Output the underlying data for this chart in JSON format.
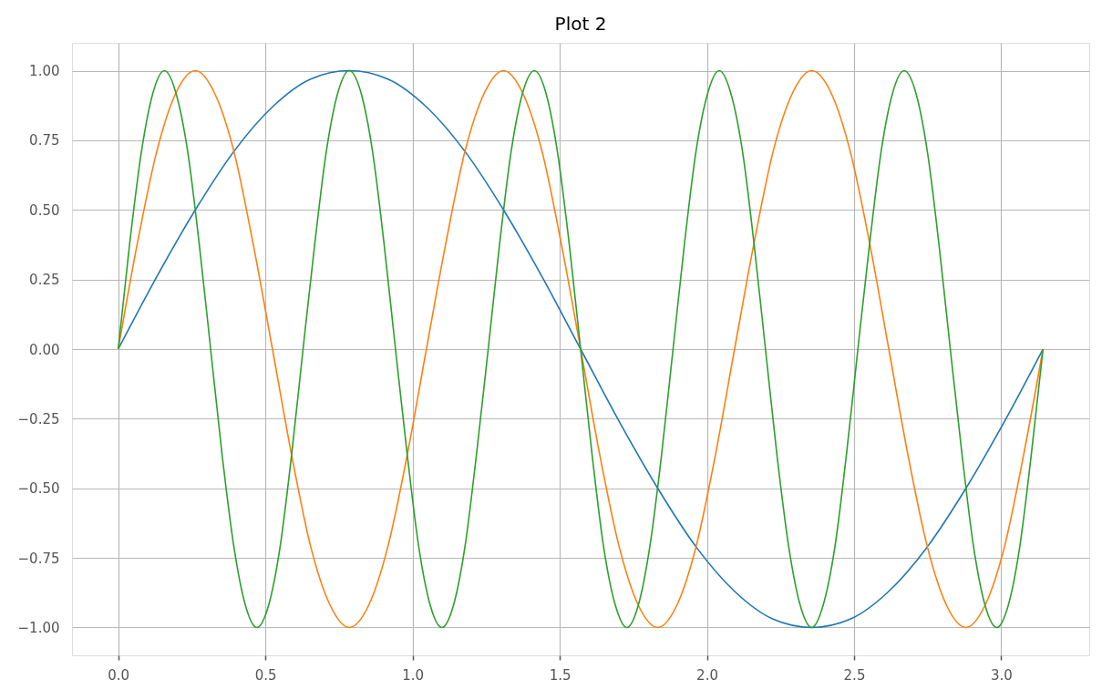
{
  "chart_data": {
    "type": "line",
    "title": "Plot 2",
    "grid": true,
    "xlim": [
      -0.157,
      3.299
    ],
    "ylim": [
      -1.1,
      1.1
    ],
    "xticks": [
      {
        "value": 0,
        "label": "0.0"
      },
      {
        "value": 0.5,
        "label": "0.5"
      },
      {
        "value": 1,
        "label": "1.0"
      },
      {
        "value": 1.5,
        "label": "1.5"
      },
      {
        "value": 2,
        "label": "2.0"
      },
      {
        "value": 2.5,
        "label": "2.5"
      },
      {
        "value": 3,
        "label": "3.0"
      }
    ],
    "yticks": [
      {
        "value": -1,
        "label": "−1.00"
      },
      {
        "value": -0.75,
        "label": "−0.75"
      },
      {
        "value": -0.5,
        "label": "−0.50"
      },
      {
        "value": -0.25,
        "label": "−0.25"
      },
      {
        "value": 0,
        "label": "0.00"
      },
      {
        "value": 0.25,
        "label": "0.25"
      },
      {
        "value": 0.5,
        "label": "0.50"
      },
      {
        "value": 0.75,
        "label": "0.75"
      },
      {
        "value": 1,
        "label": "1.00"
      }
    ],
    "series": [
      {
        "color": "#1f77b4",
        "x": [
          0,
          0.131,
          0.262,
          0.393,
          0.524,
          0.654,
          0.785,
          0.916,
          1.047,
          1.178,
          1.309,
          1.44,
          1.571,
          1.702,
          1.833,
          1.963,
          2.094,
          2.225,
          2.356,
          2.487,
          2.618,
          2.749,
          2.88,
          3.011,
          3.142
        ],
        "values": [
          0,
          0.26,
          0.5,
          0.71,
          0.87,
          0.97,
          1,
          0.97,
          0.87,
          0.71,
          0.5,
          0.26,
          0,
          -0.26,
          -0.5,
          -0.71,
          -0.87,
          -0.97,
          -1,
          -0.97,
          -0.87,
          -0.71,
          -0.5,
          -0.26,
          0
        ]
      },
      {
        "color": "#ff7f0e",
        "x": [
          0,
          0.065,
          0.131,
          0.196,
          0.262,
          0.327,
          0.393,
          0.458,
          0.524,
          0.589,
          0.654,
          0.72,
          0.785,
          0.851,
          0.916,
          0.982,
          1.047,
          1.113,
          1.178,
          1.244,
          1.309,
          1.374,
          1.44,
          1.505,
          1.571,
          1.636,
          1.702,
          1.767,
          1.833,
          1.898,
          1.963,
          2.029,
          2.094,
          2.16,
          2.225,
          2.291,
          2.356,
          2.422,
          2.487,
          2.553,
          2.618,
          2.683,
          2.749,
          2.814,
          2.88,
          2.945,
          3.011,
          3.076,
          3.142
        ],
        "values": [
          0,
          0.38,
          0.71,
          0.92,
          1,
          0.92,
          0.71,
          0.38,
          0,
          -0.38,
          -0.71,
          -0.92,
          -1,
          -0.92,
          -0.71,
          -0.38,
          0,
          0.38,
          0.71,
          0.92,
          1,
          0.92,
          0.71,
          0.38,
          0,
          -0.38,
          -0.71,
          -0.92,
          -1,
          -0.92,
          -0.71,
          -0.38,
          0,
          0.38,
          0.71,
          0.92,
          1,
          0.92,
          0.71,
          0.38,
          0,
          -0.38,
          -0.71,
          -0.92,
          -1,
          -0.92,
          -0.71,
          -0.38,
          0
        ]
      },
      {
        "color": "#2ca02c",
        "x": [
          0,
          0.039,
          0.079,
          0.118,
          0.157,
          0.196,
          0.236,
          0.275,
          0.314,
          0.353,
          0.393,
          0.432,
          0.471,
          0.511,
          0.55,
          0.589,
          0.628,
          0.668,
          0.707,
          0.746,
          0.785,
          0.825,
          0.864,
          0.903,
          0.942,
          0.982,
          1.021,
          1.06,
          1.1,
          1.139,
          1.178,
          1.217,
          1.257,
          1.296,
          1.335,
          1.374,
          1.414,
          1.453,
          1.492,
          1.532,
          1.571,
          1.61,
          1.649,
          1.689,
          1.728,
          1.767,
          1.806,
          1.846,
          1.885,
          1.924,
          1.963,
          2.003,
          2.042,
          2.081,
          2.121,
          2.16,
          2.199,
          2.238,
          2.278,
          2.317,
          2.356,
          2.395,
          2.435,
          2.474,
          2.513,
          2.553,
          2.592,
          2.631,
          2.67,
          2.71,
          2.749,
          2.788,
          2.827,
          2.867,
          2.906,
          2.945,
          2.985,
          3.024,
          3.063,
          3.102,
          3.142
        ],
        "values": [
          0,
          0.38,
          0.71,
          0.92,
          1,
          0.92,
          0.71,
          0.38,
          0,
          -0.38,
          -0.71,
          -0.92,
          -1,
          -0.92,
          -0.71,
          -0.38,
          0,
          0.38,
          0.71,
          0.92,
          1,
          0.92,
          0.71,
          0.38,
          0,
          -0.38,
          -0.71,
          -0.92,
          -1,
          -0.92,
          -0.71,
          -0.38,
          0,
          0.38,
          0.71,
          0.92,
          1,
          0.92,
          0.71,
          0.38,
          0,
          -0.38,
          -0.71,
          -0.92,
          -1,
          -0.92,
          -0.71,
          -0.38,
          0,
          0.38,
          0.71,
          0.92,
          1,
          0.92,
          0.71,
          0.38,
          0,
          -0.38,
          -0.71,
          -0.92,
          -1,
          -0.92,
          -0.71,
          -0.38,
          0,
          0.38,
          0.71,
          0.92,
          1,
          0.92,
          0.71,
          0.38,
          0,
          -0.38,
          -0.71,
          -0.92,
          -1,
          -0.92,
          -0.71,
          -0.38,
          0
        ]
      }
    ]
  }
}
